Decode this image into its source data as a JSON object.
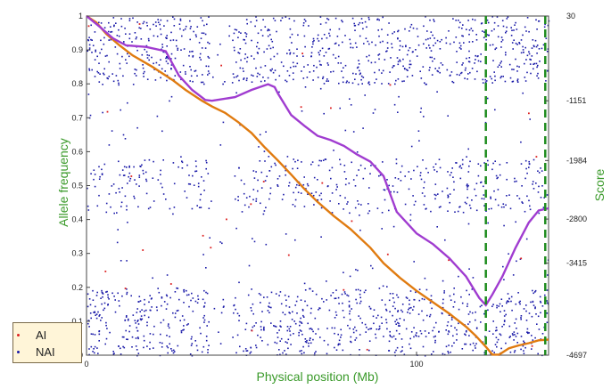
{
  "chart_data": {
    "type": "scatter",
    "xlabel": "Physical position (Mb)",
    "ylabel": "Allele frequency",
    "y2label": "Score",
    "xlim": [
      0,
      140
    ],
    "ylim": [
      0,
      1
    ],
    "y2lim": [
      -4697,
      30
    ],
    "xticks": [
      0,
      100
    ],
    "yticks": [
      0,
      0.1,
      0.2,
      0.3,
      0.4,
      0.5,
      0.6,
      0.7,
      0.8,
      0.9,
      1
    ],
    "y2ticks": [
      30,
      -1151,
      -1984,
      -2800,
      -3415,
      -4697
    ],
    "series": [
      {
        "name": "AI",
        "color": "#dd2222",
        "kind": "points"
      },
      {
        "name": "NAI",
        "color": "#1a1aa8",
        "kind": "points",
        "bands": [
          {
            "y": [
              0.0,
              0.2
            ],
            "density": "dense"
          },
          {
            "y": [
              0.42,
              0.58
            ],
            "density": "medium"
          },
          {
            "y": [
              0.8,
              1.0
            ],
            "density": "dense"
          }
        ],
        "gaps_x": [
          [
            37,
            44
          ]
        ]
      },
      {
        "kind": "line",
        "axis": "y2",
        "color": "#e07b10",
        "points": [
          [
            0,
            30
          ],
          [
            3,
            -60
          ],
          [
            6,
            -220
          ],
          [
            10,
            -380
          ],
          [
            14,
            -520
          ],
          [
            20,
            -680
          ],
          [
            26,
            -860
          ],
          [
            30,
            -1000
          ],
          [
            35,
            -1151
          ],
          [
            38,
            -1230
          ],
          [
            42,
            -1320
          ],
          [
            46,
            -1450
          ],
          [
            50,
            -1600
          ],
          [
            54,
            -1800
          ],
          [
            58,
            -1984
          ],
          [
            62,
            -2180
          ],
          [
            66,
            -2380
          ],
          [
            70,
            -2560
          ],
          [
            75,
            -2760
          ],
          [
            80,
            -2940
          ],
          [
            86,
            -3200
          ],
          [
            90,
            -3415
          ],
          [
            95,
            -3620
          ],
          [
            100,
            -3800
          ],
          [
            105,
            -3960
          ],
          [
            110,
            -4120
          ],
          [
            115,
            -4300
          ],
          [
            118,
            -4430
          ],
          [
            121,
            -4580
          ],
          [
            123,
            -4690
          ],
          [
            125,
            -4690
          ],
          [
            128,
            -4600
          ],
          [
            131,
            -4560
          ],
          [
            134,
            -4530
          ],
          [
            137,
            -4490
          ],
          [
            140,
            -4480
          ]
        ]
      },
      {
        "kind": "line",
        "axis": "y2",
        "color": "#a03cd0",
        "points": [
          [
            0,
            30
          ],
          [
            4,
            -120
          ],
          [
            8,
            -280
          ],
          [
            12,
            -380
          ],
          [
            18,
            -400
          ],
          [
            24,
            -460
          ],
          [
            28,
            -800
          ],
          [
            32,
            -1000
          ],
          [
            36,
            -1140
          ],
          [
            38,
            -1151
          ],
          [
            45,
            -1100
          ],
          [
            50,
            -1000
          ],
          [
            55,
            -920
          ],
          [
            57,
            -960
          ],
          [
            58,
            -1050
          ],
          [
            62,
            -1350
          ],
          [
            66,
            -1500
          ],
          [
            70,
            -1640
          ],
          [
            74,
            -1700
          ],
          [
            78,
            -1780
          ],
          [
            82,
            -1900
          ],
          [
            86,
            -2000
          ],
          [
            90,
            -2200
          ],
          [
            94,
            -2700
          ],
          [
            100,
            -3000
          ],
          [
            105,
            -3150
          ],
          [
            110,
            -3350
          ],
          [
            115,
            -3600
          ],
          [
            119,
            -3900
          ],
          [
            121,
            -4000
          ],
          [
            123,
            -3850
          ],
          [
            126,
            -3600
          ],
          [
            130,
            -3200
          ],
          [
            134,
            -2850
          ],
          [
            137,
            -2680
          ],
          [
            140,
            -2650
          ]
        ]
      }
    ],
    "vlines": [
      {
        "x": 121,
        "color": "#1e8c1e",
        "style": "dashed"
      },
      {
        "x": 139,
        "color": "#1e8c1e",
        "style": "dashed"
      }
    ],
    "legend": {
      "placement": "bottom-left"
    }
  }
}
